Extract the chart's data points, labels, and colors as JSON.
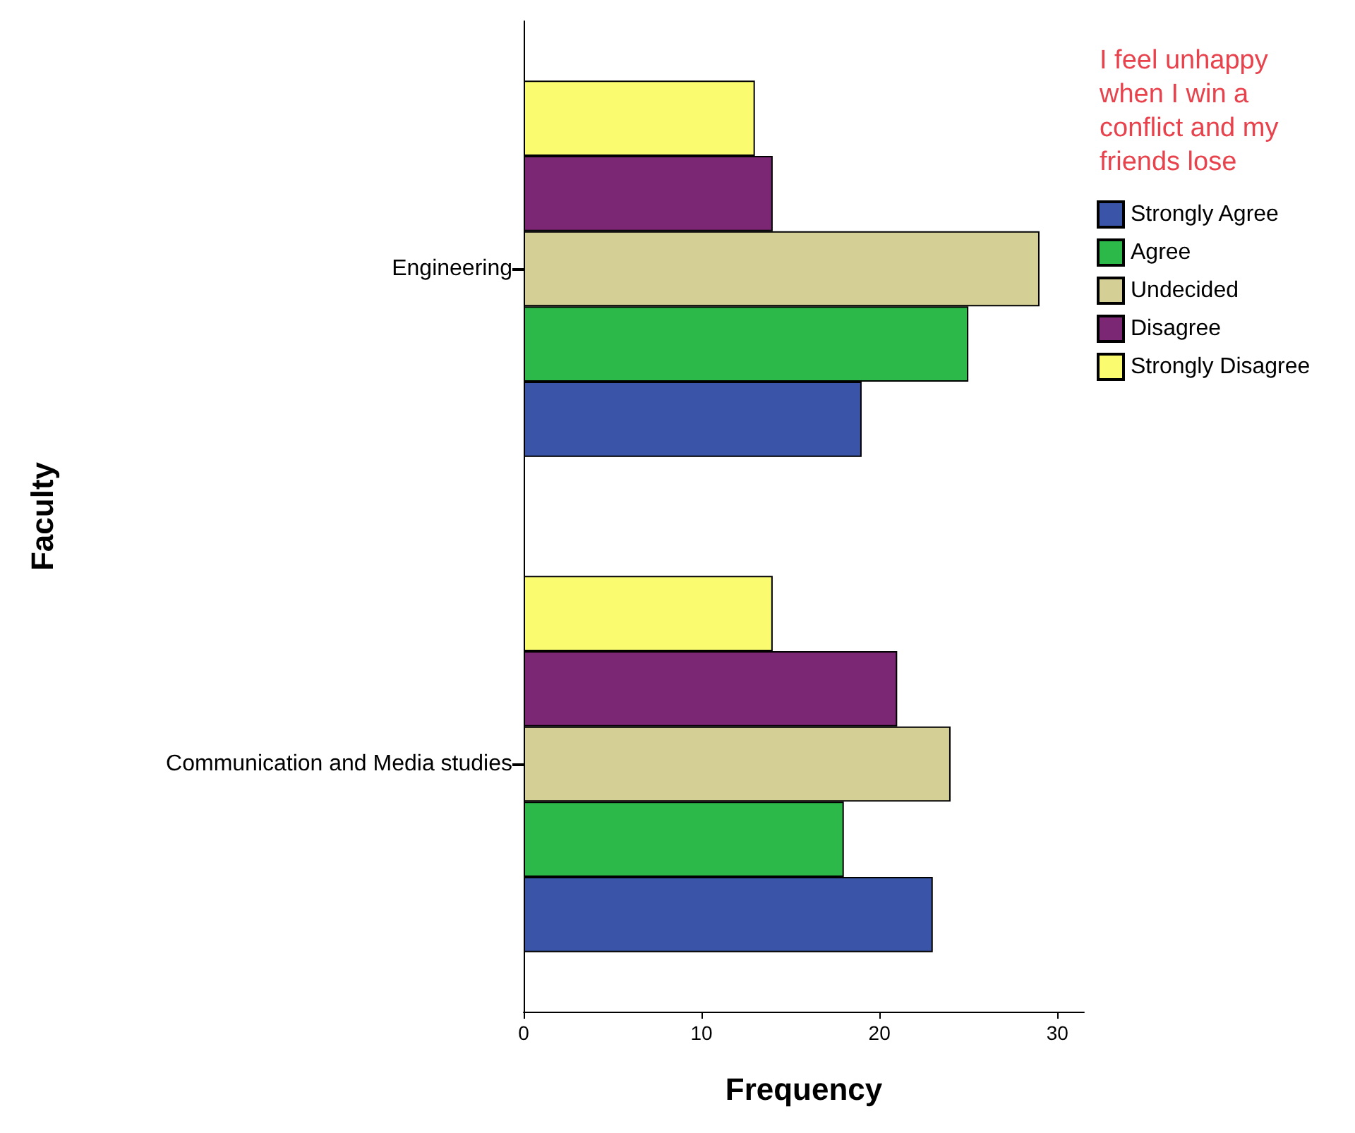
{
  "chart_data": {
    "type": "bar",
    "orientation": "horizontal",
    "xlabel": "Frequency",
    "ylabel": "Faculty",
    "legend_title": "I feel unhappy when I win a conflict and my friends lose",
    "legend": "top right",
    "grid": false,
    "categories": [
      "Engineering",
      "Communication and Media studies"
    ],
    "xlim": [
      0,
      31.5
    ],
    "xticks": [
      0,
      10,
      20,
      30
    ],
    "series": [
      {
        "name": "Strongly Agree",
        "color": "#3a55a8",
        "values": [
          19,
          23
        ]
      },
      {
        "name": "Agree",
        "color": "#2db84a",
        "values": [
          25,
          18
        ]
      },
      {
        "name": "Undecided",
        "color": "#d4cf95",
        "values": [
          29,
          24
        ]
      },
      {
        "name": "Disagree",
        "color": "#7b2773",
        "values": [
          14,
          21
        ]
      },
      {
        "name": "Strongly Disagree",
        "color": "#fbfb70",
        "values": [
          13,
          14
        ]
      }
    ]
  }
}
